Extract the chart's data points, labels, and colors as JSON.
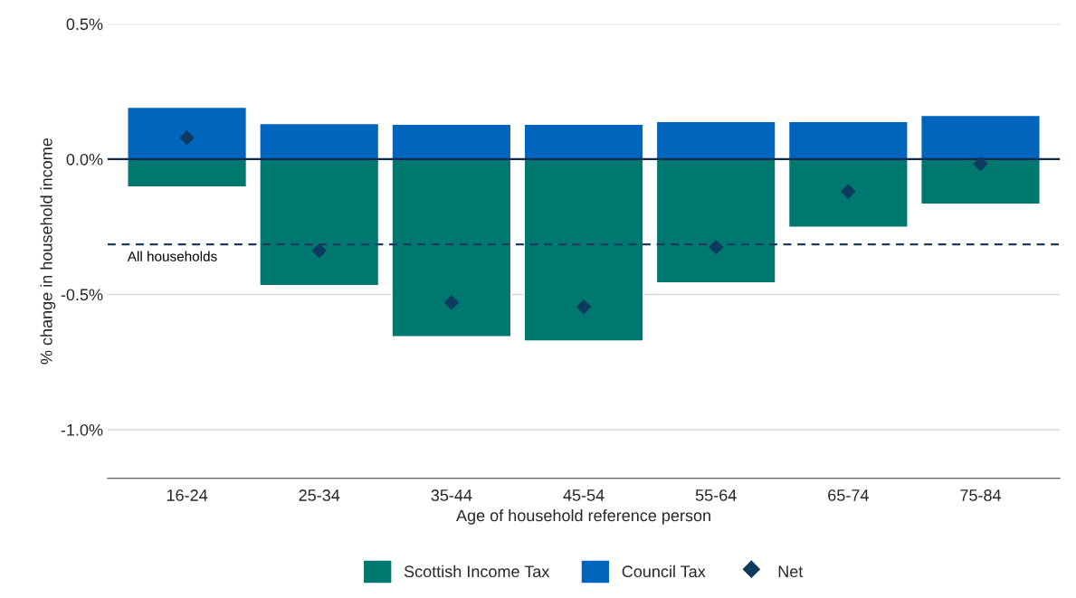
{
  "chart_data": {
    "type": "bar",
    "xlabel": "Age of household reference person",
    "ylabel": "% change in household income",
    "categories": [
      "16-24",
      "25-34",
      "35-44",
      "45-54",
      "55-64",
      "65-74",
      "75-84"
    ],
    "stacked": true,
    "series": [
      {
        "name": "Scottish Income Tax",
        "color": "#00776f",
        "values": [
          -0.103,
          -0.467,
          -0.656,
          -0.672,
          -0.457,
          -0.252,
          -0.166
        ]
      },
      {
        "name": "Council Tax",
        "color": "#0065bd",
        "values": [
          0.192,
          0.132,
          0.129,
          0.129,
          0.139,
          0.139,
          0.162
        ]
      },
      {
        "name": "Net",
        "type": "scatter",
        "marker": "diamond",
        "color": "#0e3a5f",
        "x": [
          "16-24",
          "25-34",
          "35-44",
          "45-54",
          "55-64",
          "65-74",
          "75-84"
        ],
        "values": [
          0.079,
          -0.338,
          -0.53,
          -0.546,
          -0.325,
          -0.119,
          -0.017
        ]
      }
    ],
    "ylim": [
      -1.18,
      0.5
    ],
    "yticks": [
      {
        "value": -1.0,
        "label": "-1.0%"
      },
      {
        "value": -0.5,
        "label": "-0.5%"
      },
      {
        "value": 0.0,
        "label": "0.0%"
      },
      {
        "value": 0.5,
        "label": "0.5%"
      }
    ],
    "ref_lines": [
      {
        "axis": "y",
        "value": 0.0,
        "color": "#0e2a4f",
        "line_style": "solid"
      },
      {
        "axis": "y",
        "value": -0.315,
        "label": "All households",
        "color": "#1f3b5a",
        "line_style": "dashed"
      }
    ],
    "grid": "y",
    "legend": "bottom"
  }
}
